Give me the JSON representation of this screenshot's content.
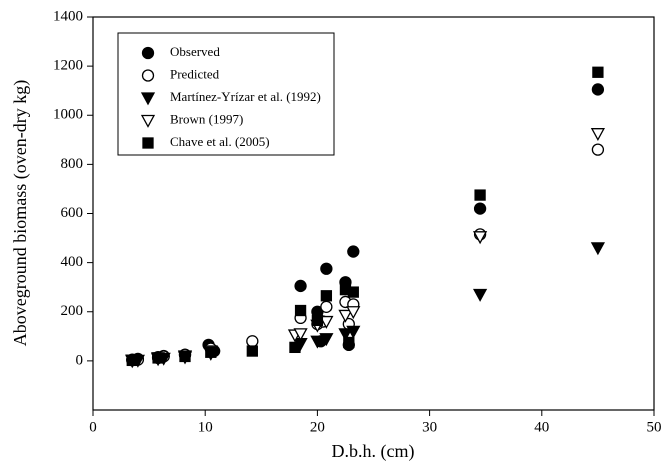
{
  "chart_data": {
    "type": "scatter",
    "xlabel": "D.b.h. (cm)",
    "ylabel": "Aboveground biomass (oven-dry kg)",
    "xlim": [
      0,
      50
    ],
    "xticks": [
      0,
      10,
      20,
      30,
      40,
      50
    ],
    "ylim": [
      -200,
      1400
    ],
    "yticks": [
      0,
      200,
      400,
      600,
      800,
      1000,
      1200,
      1400
    ],
    "legend": "upper-left",
    "series": [
      {
        "name": "Observed",
        "color": "#000000",
        "marker": "circle-filled",
        "x": [
          3.5,
          4,
          5.8,
          6.3,
          8.2,
          10.3,
          10.8,
          18.5,
          20,
          20.8,
          22.5,
          23.2,
          20.3,
          22.8,
          34.5,
          45
        ],
        "y": [
          5,
          8,
          15,
          20,
          25,
          65,
          40,
          305,
          200,
          375,
          320,
          445,
          80,
          65,
          620,
          1105
        ]
      },
      {
        "name": "Predicted",
        "color": "#000000",
        "marker": "circle-open",
        "x": [
          3.5,
          4,
          5.8,
          6.3,
          8.2,
          10.5,
          14.2,
          18.5,
          20,
          20.8,
          20.5,
          22.5,
          23.2,
          22.8,
          34.5,
          45
        ],
        "y": [
          3,
          5,
          12,
          18,
          25,
          50,
          80,
          175,
          150,
          220,
          160,
          240,
          230,
          150,
          515,
          860
        ]
      },
      {
        "name": "Martínez-Yrízar et al. (1992)",
        "color": "#000000",
        "marker": "triangle-down-filled",
        "x": [
          3.5,
          4,
          5.8,
          6.3,
          8.2,
          10.5,
          18.5,
          20,
          20.8,
          22.5,
          23.2,
          34.5,
          45
        ],
        "y": [
          0,
          2,
          8,
          10,
          15,
          30,
          70,
          80,
          90,
          110,
          120,
          270,
          460
        ]
      },
      {
        "name": "Brown (1997)",
        "color": "#000000",
        "marker": "triangle-down-open",
        "x": [
          3.5,
          5.8,
          8.2,
          10.5,
          18,
          18.5,
          20,
          20.8,
          22.5,
          23.2,
          34.5,
          45
        ],
        "y": [
          3,
          12,
          20,
          40,
          105,
          110,
          145,
          160,
          185,
          200,
          505,
          925
        ]
      },
      {
        "name": "Chave et al. (2005)",
        "color": "#000000",
        "marker": "square-filled",
        "x": [
          3.5,
          5.8,
          8.2,
          10.5,
          14.2,
          18,
          18.5,
          20,
          20.8,
          22.5,
          23.2,
          22.8,
          34.5,
          45
        ],
        "y": [
          2,
          12,
          18,
          35,
          40,
          55,
          205,
          165,
          265,
          290,
          280,
          75,
          675,
          1175
        ]
      }
    ]
  }
}
